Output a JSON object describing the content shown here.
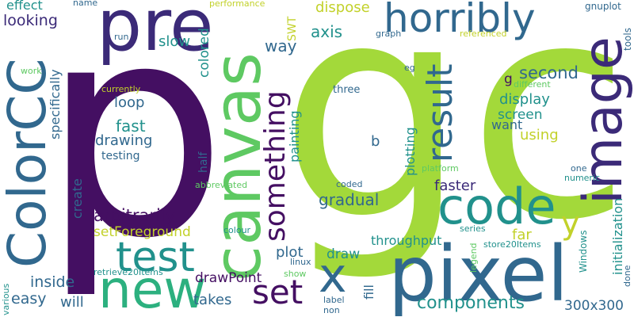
{
  "words": {
    "p": "p",
    "gc": "gc",
    "pre": "pre",
    "canvas": "canvas",
    "image": "image",
    "horribly": "horribly",
    "ColorCC": "ColorCC",
    "code": "code",
    "pixel": "pixel",
    "new": "new",
    "test": "test",
    "result": "result",
    "something": "something",
    "x": "x",
    "set": "set",
    "y": "y",
    "components": "components",
    "arbitrarily": "arbitrarily",
    "second": "second",
    "display": "display",
    "looking": "looking",
    "effect": "effect",
    "name": "name",
    "performance": "performance",
    "dispose": "dispose",
    "gnuplot": "gnuplot",
    "tools": "tools",
    "axis": "axis",
    "SWT": "SWT",
    "way": "way",
    "graph": "graph",
    "run": "run",
    "referenced": "referenced",
    "slow": "slow",
    "colored": "colored",
    "work": "work",
    "specifically": "specifically",
    "currently": "currently",
    "loop": "loop",
    "fast": "fast",
    "drawing": "drawing",
    "testing": "testing",
    "three": "three",
    "eg": "eg",
    "g": "g",
    "different": "different",
    "screen": "screen",
    "want": "want",
    "using": "using",
    "b": "b",
    "plotting": "plotting",
    "painting": "painting",
    "half": "half",
    "platform": "platform",
    "one": "one",
    "numeric": "numeric",
    "initialization": "initialization",
    "create": "create",
    "abbreviated": "abbreviated",
    "coded": "coded",
    "gradual": "gradual",
    "faster": "faster",
    "far": "far",
    "setForeground": "setForeground",
    "colour": "colour",
    "throughput": "throughput",
    "series": "series",
    "store20Items": "store20Items",
    "plot": "plot",
    "draw": "draw",
    "linux": "linux",
    "Windows": "Windows",
    "legend": "legend",
    "various": "various",
    "retrieve20Items": "retrieve20Items",
    "inside": "inside",
    "drawPoint": "drawPoint",
    "show": "show",
    "easy": "easy",
    "will": "will",
    "takes": "takes",
    "fill": "fill",
    "label": "label",
    "non": "non",
    "300x300": "300x300",
    "done": "done"
  },
  "colors": {
    "background": "#ffffff",
    "palette": [
      "#440f62",
      "#3b2a78",
      "#31688e",
      "#3c5a8f",
      "#21918c",
      "#2cb07f",
      "#5ec962",
      "#a3d93a",
      "#c2d12a"
    ]
  }
}
